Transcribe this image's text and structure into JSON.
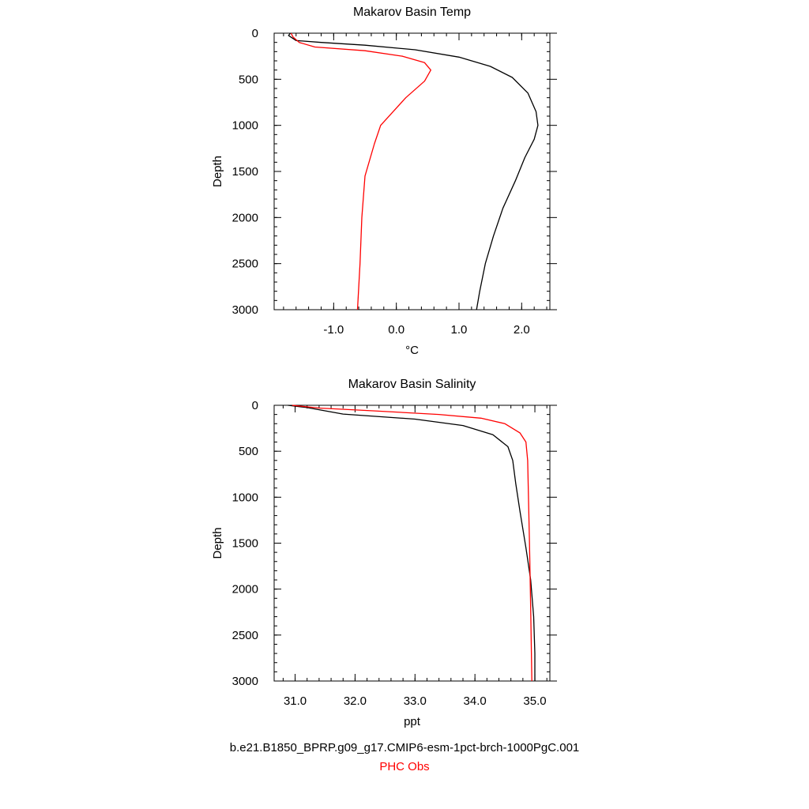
{
  "chart_data": [
    {
      "type": "line",
      "title": "Makarov Basin Temp",
      "xlabel": "°C",
      "ylabel": "Depth",
      "xlim": [
        -1.95,
        2.45
      ],
      "ylim": [
        3000,
        0
      ],
      "xticks": [
        -1.0,
        0.0,
        1.0,
        2.0
      ],
      "xtick_labels": [
        "-1.0",
        "0.0",
        "1.0",
        "2.0"
      ],
      "yticks": [
        0,
        500,
        1000,
        1500,
        2000,
        2500,
        3000
      ],
      "ytick_labels": [
        "0",
        "500",
        "1000",
        "1500",
        "2000",
        "2500",
        "3000"
      ],
      "series": [
        {
          "name": "b.e21.B1850_BPRP.g09_g17.CMIP6-esm-1pct-brch-1000PgC.001",
          "color": "#000000",
          "points": [
            [
              -1.69,
              0
            ],
            [
              -1.72,
              25
            ],
            [
              -1.6,
              80
            ],
            [
              -1.2,
              100
            ],
            [
              -0.5,
              130
            ],
            [
              0.3,
              180
            ],
            [
              1.0,
              260
            ],
            [
              1.5,
              360
            ],
            [
              1.85,
              480
            ],
            [
              2.1,
              650
            ],
            [
              2.23,
              850
            ],
            [
              2.26,
              1000
            ],
            [
              2.2,
              1150
            ],
            [
              2.05,
              1350
            ],
            [
              1.9,
              1600
            ],
            [
              1.7,
              1900
            ],
            [
              1.55,
              2200
            ],
            [
              1.42,
              2500
            ],
            [
              1.33,
              2800
            ],
            [
              1.28,
              3000
            ]
          ]
        },
        {
          "name": "PHC Obs",
          "color": "#ff0000",
          "points": [
            [
              -1.68,
              0
            ],
            [
              -1.65,
              40
            ],
            [
              -1.55,
              100
            ],
            [
              -1.3,
              150
            ],
            [
              -0.5,
              190
            ],
            [
              0.1,
              250
            ],
            [
              0.45,
              320
            ],
            [
              0.55,
              400
            ],
            [
              0.45,
              520
            ],
            [
              0.15,
              700
            ],
            [
              -0.05,
              850
            ],
            [
              -0.25,
              1000
            ],
            [
              -0.35,
              1200
            ],
            [
              -0.5,
              1550
            ],
            [
              -0.55,
              2000
            ],
            [
              -0.58,
              2500
            ],
            [
              -0.62,
              3000
            ]
          ]
        }
      ]
    },
    {
      "type": "line",
      "title": "Makarov Basin Salinity",
      "xlabel": "ppt",
      "ylabel": "Depth",
      "xlim": [
        30.65,
        35.25
      ],
      "ylim": [
        3000,
        0
      ],
      "xticks": [
        31.0,
        32.0,
        33.0,
        34.0,
        35.0
      ],
      "xtick_labels": [
        "31.0",
        "32.0",
        "33.0",
        "34.0",
        "35.0"
      ],
      "yticks": [
        0,
        500,
        1000,
        1500,
        2000,
        2500,
        3000
      ],
      "ytick_labels": [
        "0",
        "500",
        "1000",
        "1500",
        "2000",
        "2500",
        "3000"
      ],
      "series": [
        {
          "name": "b.e21.B1850_BPRP.g09_g17.CMIP6-esm-1pct-brch-1000PgC.001",
          "color": "#000000",
          "points": [
            [
              30.88,
              0
            ],
            [
              31.2,
              25
            ],
            [
              31.5,
              60
            ],
            [
              31.8,
              95
            ],
            [
              33.0,
              150
            ],
            [
              33.8,
              220
            ],
            [
              34.3,
              320
            ],
            [
              34.55,
              450
            ],
            [
              34.63,
              600
            ],
            [
              34.68,
              850
            ],
            [
              34.75,
              1150
            ],
            [
              34.85,
              1550
            ],
            [
              34.93,
              1900
            ],
            [
              34.98,
              2300
            ],
            [
              35.0,
              2700
            ],
            [
              35.0,
              3000
            ]
          ]
        },
        {
          "name": "PHC Obs",
          "color": "#ff0000",
          "points": [
            [
              30.95,
              0
            ],
            [
              31.4,
              30
            ],
            [
              32.3,
              60
            ],
            [
              33.4,
              100
            ],
            [
              34.1,
              140
            ],
            [
              34.5,
              200
            ],
            [
              34.75,
              300
            ],
            [
              34.85,
              400
            ],
            [
              34.88,
              600
            ],
            [
              34.91,
              1500
            ],
            [
              34.93,
              2200
            ],
            [
              34.95,
              3000
            ]
          ]
        }
      ]
    }
  ],
  "legend": {
    "model": "b.e21.B1850_BPRP.g09_g17.CMIP6-esm-1pct-brch-1000PgC.001",
    "obs": "PHC Obs"
  }
}
